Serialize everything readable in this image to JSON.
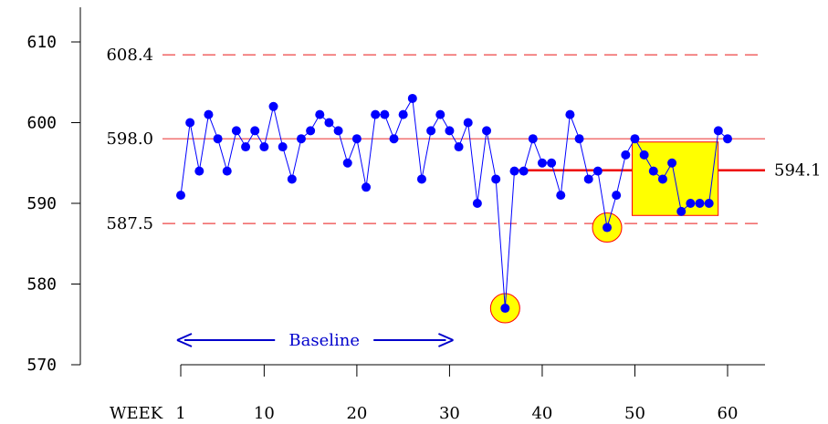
{
  "chart_data": {
    "type": "line",
    "x": [
      1,
      2,
      3,
      4,
      5,
      6,
      7,
      8,
      9,
      10,
      11,
      12,
      13,
      14,
      15,
      16,
      17,
      18,
      19,
      20,
      21,
      22,
      23,
      24,
      25,
      26,
      27,
      28,
      29,
      30,
      31,
      32,
      33,
      34,
      35,
      36,
      37,
      38,
      39,
      40,
      41,
      42,
      43,
      44,
      45,
      46,
      47,
      48,
      49,
      50,
      51,
      52,
      53,
      54,
      55,
      56,
      57,
      58,
      59,
      60
    ],
    "series": [
      {
        "values": [
          591,
          600,
          594,
          601,
          598,
          594,
          599,
          597,
          599,
          597,
          602,
          597,
          593,
          598,
          599,
          601,
          600,
          599,
          595,
          598,
          592,
          601,
          601,
          598,
          601,
          603,
          593,
          599,
          601,
          599,
          597,
          600,
          590,
          599,
          593,
          577,
          594,
          594,
          598,
          595,
          595,
          591,
          601,
          598,
          593,
          594,
          587,
          591,
          596,
          598,
          596,
          594,
          593,
          595,
          589,
          590,
          590,
          590,
          599,
          598
        ],
        "color": "#0000ff"
      }
    ],
    "xlabel": "WEEK",
    "xticks": [
      "1",
      "10",
      "20",
      "30",
      "40",
      "50",
      "60"
    ],
    "xtick_values": [
      1,
      10,
      20,
      30,
      40,
      50,
      60
    ],
    "yticks": [
      "570",
      "580",
      "590",
      "600",
      "610"
    ],
    "ytick_values": [
      570,
      580,
      590,
      600,
      610
    ],
    "xlim": [
      1,
      60
    ],
    "ylim": [
      570,
      612
    ],
    "reference_lines": [
      {
        "label": "608.4",
        "value": 608.4,
        "style": "dashed",
        "side": "left",
        "color": "#ee4444"
      },
      {
        "label": "598.0",
        "value": 598.0,
        "style": "solid",
        "side": "left",
        "color": "#ee4444"
      },
      {
        "label": "587.5",
        "value": 587.5,
        "style": "dashed",
        "side": "left",
        "color": "#ee4444"
      },
      {
        "label": "594.1",
        "value": 594.1,
        "style": "solid-bold",
        "side": "right",
        "color": "#ee0000",
        "x_start": 37
      }
    ],
    "highlights": [
      {
        "type": "circle",
        "x": 36,
        "y": 577
      },
      {
        "type": "circle",
        "x": 47,
        "y": 587
      },
      {
        "type": "rect",
        "x_range": [
          50,
          58
        ],
        "y_range": [
          588.5,
          597.6
        ]
      }
    ],
    "annotation": {
      "text": "Baseline",
      "x_range": [
        1,
        30
      ]
    },
    "grid": false,
    "highlight_color": "#ffff00",
    "highlight_stroke": "#ff0000",
    "axis_color": "#000000"
  }
}
